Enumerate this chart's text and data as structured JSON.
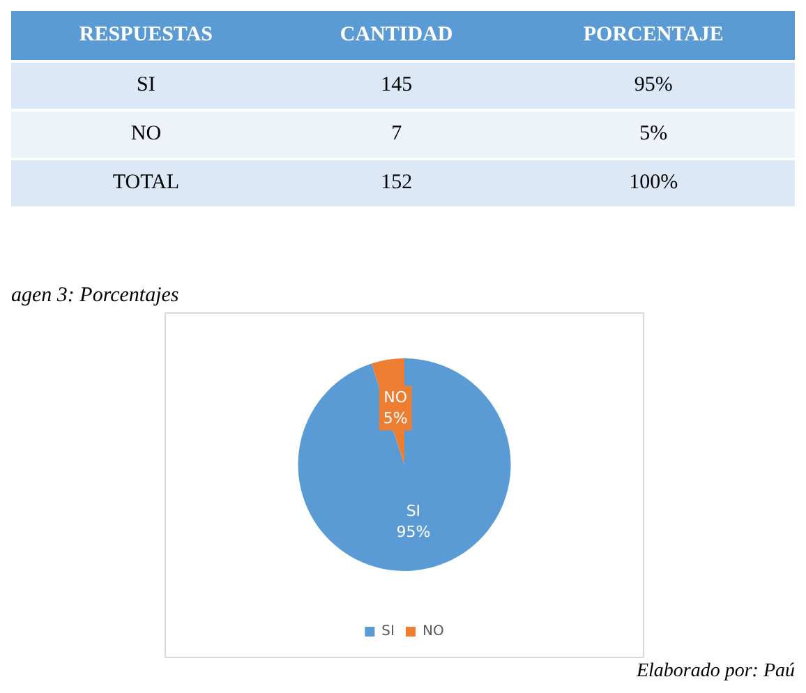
{
  "chart_data": {
    "type": "pie",
    "title": "agen 3: Porcentajes",
    "categories": [
      "SI",
      "NO"
    ],
    "values": [
      95,
      5
    ],
    "value_labels": [
      "95%",
      "5%"
    ],
    "colors": [
      "#5b9bd5",
      "#ed7d31"
    ],
    "legend": "bottom",
    "totals": [
      "152",
      "100%"
    ],
    "annotations": [
      "RESPUESTAS",
      "CANTIDAD",
      "PORCENTAJE",
      "TOTAL",
      "Elaborado por: Paú",
      "145",
      "7"
    ]
  }
}
